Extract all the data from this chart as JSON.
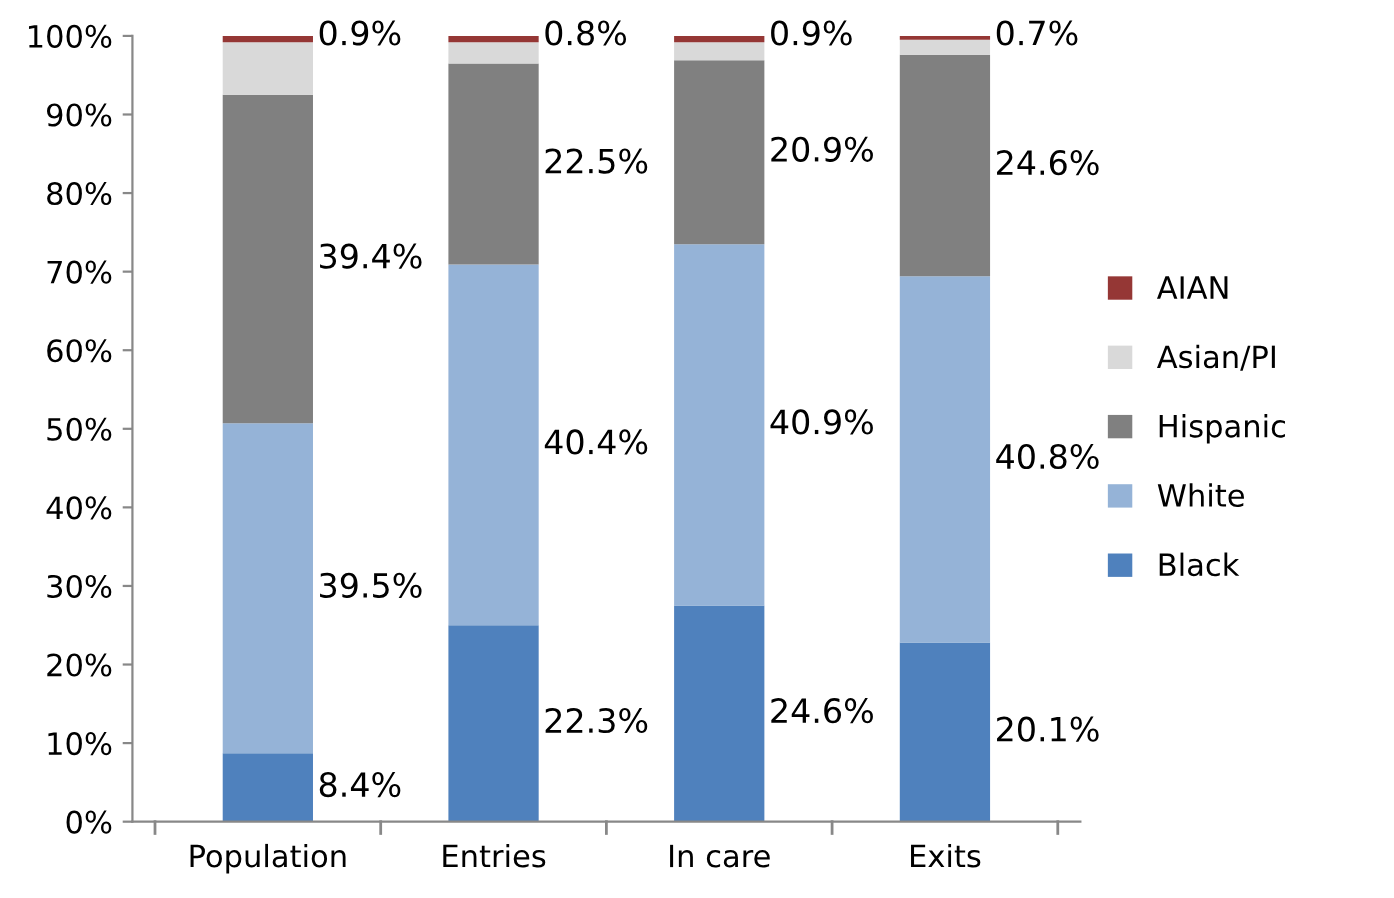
{
  "chart_data": {
    "type": "bar",
    "stacked": true,
    "categories": [
      "Population",
      "Entries",
      "In care",
      "Exits"
    ],
    "series": [
      {
        "name": "Black",
        "color": "#4f81bd",
        "values": [
          8.7,
          25.0,
          27.5,
          22.8
        ]
      },
      {
        "name": "White",
        "color": "#95b3d7",
        "values": [
          42.0,
          45.9,
          46.0,
          46.6
        ]
      },
      {
        "name": "Hispanic",
        "color": "#808080",
        "values": [
          41.8,
          25.6,
          23.4,
          28.2
        ]
      },
      {
        "name": "Asian/PI",
        "color": "#d9d9d9",
        "values": [
          6.7,
          2.7,
          2.3,
          1.9
        ]
      },
      {
        "name": "AIAN",
        "color": "#953735",
        "values": [
          0.8,
          0.8,
          0.8,
          0.5
        ]
      }
    ],
    "annotations": [
      "0.9%",
      "39.4%",
      "39.5%",
      "8.4%",
      "0.8%",
      "22.5%",
      "40.4%",
      "22.3%",
      "0.9%",
      "20.9%",
      "40.9%",
      "24.6%",
      "0.7%",
      "24.6%",
      "40.8%",
      "20.1%"
    ],
    "ylim": [
      0,
      100
    ],
    "yticks": [
      {
        "value": 0,
        "label": "0%"
      },
      {
        "value": 10,
        "label": "10%"
      },
      {
        "value": 20,
        "label": "20%"
      },
      {
        "value": 30,
        "label": "30%"
      },
      {
        "value": 40,
        "label": "40%"
      },
      {
        "value": 50,
        "label": "50%"
      },
      {
        "value": 60,
        "label": "60%"
      },
      {
        "value": 70,
        "label": "70%"
      },
      {
        "value": 80,
        "label": "80%"
      },
      {
        "value": 90,
        "label": "90%"
      },
      {
        "value": 100,
        "label": "100%"
      }
    ],
    "grid": false,
    "legend": "right"
  }
}
